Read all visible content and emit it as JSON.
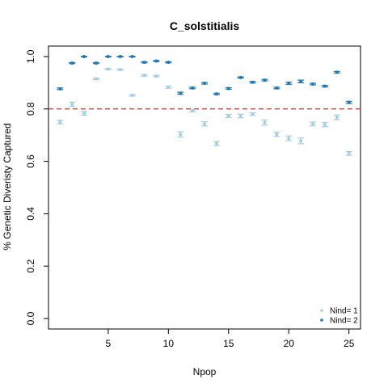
{
  "chart_data": {
    "type": "scatter",
    "title": "C_solstitialis",
    "xlabel": "Npop",
    "ylabel": "% Genetic Diveristy Captured",
    "xlim": [
      0.04,
      25.96
    ],
    "ylim": [
      -0.04,
      1.04
    ],
    "x_ticks": [
      5,
      10,
      15,
      20,
      25
    ],
    "x_tick_labels": [
      "5",
      "10",
      "15",
      "20",
      "25"
    ],
    "y_ticks": [
      0.0,
      0.2,
      0.4,
      0.6,
      0.8,
      1.0
    ],
    "y_tick_labels": [
      "0.0",
      "0.2",
      "0.4",
      "0.6",
      "0.8",
      "1.0"
    ],
    "reference_line": {
      "y": 0.8,
      "color": "#c0392b",
      "style": "dashed"
    },
    "legend": {
      "position": "bottom-right",
      "entries": [
        {
          "label": "Nind= 1",
          "color": "#a6cee3"
        },
        {
          "label": "Nind= 2",
          "color": "#1f78b4"
        }
      ]
    },
    "series": [
      {
        "name": "Nind= 1",
        "color": "#a6cee3",
        "x": [
          1,
          2,
          3,
          4,
          5,
          6,
          7,
          8,
          9,
          10,
          11,
          12,
          13,
          14,
          15,
          16,
          17,
          18,
          19,
          20,
          21,
          22,
          23,
          24,
          25
        ],
        "values": [
          0.75,
          0.818,
          0.783,
          0.915,
          0.952,
          0.95,
          0.852,
          0.928,
          0.925,
          0.883,
          0.703,
          0.793,
          0.743,
          0.668,
          0.773,
          0.773,
          0.78,
          0.748,
          0.703,
          0.688,
          0.678,
          0.743,
          0.74,
          0.768,
          0.63
        ],
        "err": [
          0.007,
          0.008,
          0.007,
          0.003,
          0.003,
          0.003,
          0.003,
          0.003,
          0.003,
          0.004,
          0.01,
          0.004,
          0.008,
          0.008,
          0.006,
          0.007,
          0.005,
          0.01,
          0.008,
          0.009,
          0.011,
          0.007,
          0.008,
          0.009,
          0.007
        ]
      },
      {
        "name": "Nind= 2",
        "color": "#1f78b4",
        "x": [
          1,
          2,
          3,
          4,
          5,
          6,
          7,
          8,
          9,
          10,
          11,
          12,
          13,
          14,
          15,
          16,
          17,
          18,
          19,
          20,
          21,
          22,
          23,
          24,
          25
        ],
        "values": [
          0.877,
          0.975,
          1.0,
          0.975,
          1.0,
          1.0,
          1.0,
          0.978,
          0.983,
          0.978,
          0.86,
          0.88,
          0.898,
          0.857,
          0.878,
          0.92,
          0.902,
          0.91,
          0.88,
          0.898,
          0.905,
          0.895,
          0.887,
          0.94,
          0.825
        ],
        "err": [
          0.003,
          0.002,
          0.001,
          0.002,
          0.001,
          0.001,
          0.001,
          0.002,
          0.002,
          0.002,
          0.004,
          0.003,
          0.003,
          0.003,
          0.003,
          0.002,
          0.003,
          0.003,
          0.003,
          0.004,
          0.005,
          0.003,
          0.003,
          0.003,
          0.004
        ]
      }
    ]
  }
}
